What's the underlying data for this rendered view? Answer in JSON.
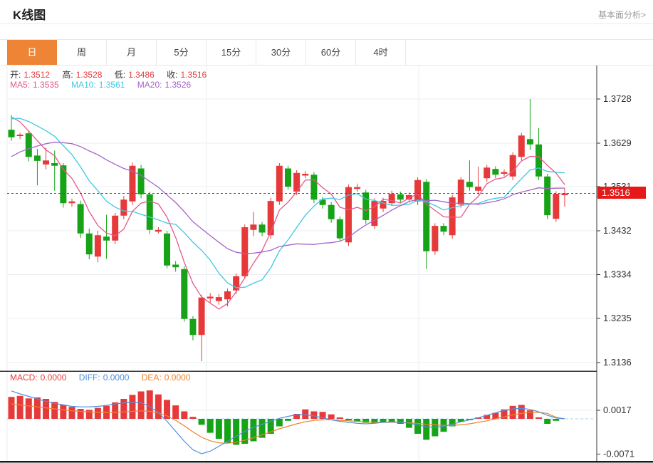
{
  "header": {
    "title": "K线图",
    "link": "基本面分析>"
  },
  "tabs": [
    {
      "label": "日",
      "active": true
    },
    {
      "label": "周",
      "active": false
    },
    {
      "label": "月",
      "active": false
    },
    {
      "label": "5分",
      "active": false
    },
    {
      "label": "15分",
      "active": false
    },
    {
      "label": "30分",
      "active": false
    },
    {
      "label": "60分",
      "active": false
    },
    {
      "label": "4时",
      "active": false
    }
  ],
  "legend": {
    "ohlc": [
      {
        "label": "开:",
        "value": "1.3512"
      },
      {
        "label": "高:",
        "value": "1.3528"
      },
      {
        "label": "低:",
        "value": "1.3486"
      },
      {
        "label": "收:",
        "value": "1.3516"
      }
    ],
    "ma": [
      {
        "label": "MA5:",
        "value": "1.3535"
      },
      {
        "label": "MA10:",
        "value": "1.3561"
      },
      {
        "label": "MA20:",
        "value": "1.3526"
      }
    ],
    "macd": [
      {
        "label": "MACD:",
        "value": "0.0000"
      },
      {
        "label": "DIFF:",
        "value": "0.0000"
      },
      {
        "label": "DEA:",
        "value": "0.0000"
      }
    ]
  },
  "price_axis": {
    "current": "1.3516"
  },
  "colors": {
    "up": "#e63a3a",
    "down": "#17a317",
    "tab_active": "#ee8536",
    "price_badge": "#e71818",
    "ma5": "#e5588a",
    "ma10": "#41c8e1",
    "ma20": "#a564c9",
    "diff": "#4f8fdc",
    "dea": "#f0832a",
    "grid": "#e9eef2",
    "frame": "#333333",
    "zero_dash": "#9fd8e0",
    "tick_text": "#333333"
  },
  "chart_data": {
    "type": "candlestick",
    "title": "K线图 (日)",
    "y_ticks": [
      1.3728,
      1.3629,
      1.3531,
      1.3432,
      1.3334,
      1.3235,
      1.3136
    ],
    "ylim": [
      1.3136,
      1.3728
    ],
    "current_price": 1.3516,
    "ohlc_display": {
      "open": 1.3512,
      "high": 1.3528,
      "low": 1.3486,
      "close": 1.3516
    },
    "ma_values": {
      "ma5": 1.3535,
      "ma10": 1.3561,
      "ma20": 1.3526
    },
    "candles": [
      [
        1.3659,
        1.3692,
        1.3634,
        1.3642
      ],
      [
        1.3645,
        1.3652,
        1.3638,
        1.3648
      ],
      [
        1.3651,
        1.3657,
        1.3588,
        1.3598
      ],
      [
        1.3601,
        1.3616,
        1.3534,
        1.3589
      ],
      [
        1.3581,
        1.3619,
        1.357,
        1.359
      ],
      [
        1.3584,
        1.3612,
        1.3522,
        1.3578
      ],
      [
        1.3579,
        1.3584,
        1.3484,
        1.3494
      ],
      [
        1.3494,
        1.3504,
        1.3486,
        1.3498
      ],
      [
        1.3492,
        1.35,
        1.3416,
        1.3426
      ],
      [
        1.3426,
        1.3437,
        1.3368,
        1.3379
      ],
      [
        1.3374,
        1.3432,
        1.3361,
        1.3422
      ],
      [
        1.3419,
        1.3468,
        1.3369,
        1.341
      ],
      [
        1.341,
        1.3472,
        1.3402,
        1.3466
      ],
      [
        1.3466,
        1.351,
        1.3458,
        1.3502
      ],
      [
        1.3498,
        1.3585,
        1.349,
        1.3578
      ],
      [
        1.3572,
        1.358,
        1.3505,
        1.3514
      ],
      [
        1.3514,
        1.352,
        1.3425,
        1.3434
      ],
      [
        1.343,
        1.344,
        1.3426,
        1.3434
      ],
      [
        1.3426,
        1.3432,
        1.3348,
        1.3354
      ],
      [
        1.3356,
        1.3364,
        1.334,
        1.335
      ],
      [
        1.3346,
        1.3352,
        1.3228,
        1.3234
      ],
      [
        1.3234,
        1.324,
        1.3186,
        1.3198
      ],
      [
        1.3198,
        1.3288,
        1.3139,
        1.3282
      ],
      [
        1.328,
        1.3292,
        1.327,
        1.3284
      ],
      [
        1.3274,
        1.329,
        1.3266,
        1.3283
      ],
      [
        1.3278,
        1.3302,
        1.3262,
        1.3296
      ],
      [
        1.3298,
        1.3336,
        1.329,
        1.333
      ],
      [
        1.333,
        1.3446,
        1.3324,
        1.344
      ],
      [
        1.3434,
        1.3474,
        1.342,
        1.3446
      ],
      [
        1.3446,
        1.3452,
        1.342,
        1.3428
      ],
      [
        1.3422,
        1.3506,
        1.3414,
        1.3499
      ],
      [
        1.3498,
        1.3584,
        1.349,
        1.3578
      ],
      [
        1.3572,
        1.3578,
        1.3524,
        1.3531
      ],
      [
        1.352,
        1.3568,
        1.3512,
        1.3562
      ],
      [
        1.3556,
        1.3566,
        1.355,
        1.356
      ],
      [
        1.3558,
        1.3564,
        1.3494,
        1.3502
      ],
      [
        1.3502,
        1.3508,
        1.3482,
        1.349
      ],
      [
        1.349,
        1.3496,
        1.345,
        1.3458
      ],
      [
        1.3458,
        1.3464,
        1.3408,
        1.3415
      ],
      [
        1.3406,
        1.3536,
        1.3398,
        1.353
      ],
      [
        1.3526,
        1.3538,
        1.352,
        1.353
      ],
      [
        1.3518,
        1.3524,
        1.3448,
        1.3456
      ],
      [
        1.3443,
        1.3505,
        1.3436,
        1.3499
      ],
      [
        1.3482,
        1.3506,
        1.3474,
        1.3499
      ],
      [
        1.3494,
        1.3522,
        1.3488,
        1.3515
      ],
      [
        1.3514,
        1.352,
        1.3495,
        1.3502
      ],
      [
        1.3502,
        1.3518,
        1.3496,
        1.3512
      ],
      [
        1.3498,
        1.3552,
        1.349,
        1.3546
      ],
      [
        1.3542,
        1.3548,
        1.3346,
        1.3386
      ],
      [
        1.3386,
        1.3449,
        1.3378,
        1.3443
      ],
      [
        1.3443,
        1.3449,
        1.3422,
        1.343
      ],
      [
        1.3422,
        1.3513,
        1.3414,
        1.3507
      ],
      [
        1.3491,
        1.3553,
        1.3484,
        1.3547
      ],
      [
        1.3542,
        1.359,
        1.3522,
        1.353
      ],
      [
        1.3522,
        1.3576,
        1.3514,
        1.3531
      ],
      [
        1.355,
        1.358,
        1.3542,
        1.3574
      ],
      [
        1.3571,
        1.3577,
        1.355,
        1.3558
      ],
      [
        1.356,
        1.357,
        1.3554,
        1.3564
      ],
      [
        1.3554,
        1.3608,
        1.3546,
        1.3602
      ],
      [
        1.3598,
        1.3652,
        1.359,
        1.3646
      ],
      [
        1.3638,
        1.3728,
        1.3614,
        1.3626
      ],
      [
        1.3626,
        1.3663,
        1.3546,
        1.3554
      ],
      [
        1.3554,
        1.356,
        1.3458,
        1.3467
      ],
      [
        1.3459,
        1.3521,
        1.3452,
        1.3515
      ],
      [
        1.3512,
        1.3528,
        1.3486,
        1.3516
      ]
    ],
    "ma_windows": [
      5,
      10,
      20
    ],
    "ma_seed_closes": [
      1.344,
      1.3452,
      1.3468,
      1.3488,
      1.3505,
      1.3522,
      1.354,
      1.3558,
      1.3575,
      1.359,
      1.364,
      1.3668,
      1.3688,
      1.3698,
      1.3702,
      1.3705,
      1.37,
      1.3698,
      1.3695
    ],
    "macd": {
      "ticks": [
        0.0017,
        -0.0071
      ],
      "unit": 0.0001,
      "hist": [
        44,
        46,
        41,
        43,
        40,
        34,
        28,
        24,
        20,
        18,
        22,
        26,
        33,
        40,
        48,
        55,
        57,
        49,
        38,
        27,
        15,
        4,
        -12,
        -28,
        -40,
        -48,
        -52,
        -50,
        -45,
        -38,
        -30,
        -15,
        -4,
        10,
        19,
        15,
        14,
        9,
        2,
        -3,
        -6,
        -8,
        -9,
        -8,
        -6,
        -10,
        -18,
        -30,
        -42,
        -35,
        -26,
        -15,
        -6,
        -2,
        2,
        8,
        12,
        19,
        26,
        28,
        17,
        3,
        -10,
        -4,
        0
      ],
      "diff": [
        56,
        50,
        45,
        40,
        35,
        31,
        28,
        25,
        24,
        24,
        25,
        27,
        30,
        32,
        33,
        32,
        25,
        12,
        -5,
        -25,
        -45,
        -62,
        -70,
        -65,
        -55,
        -45,
        -35,
        -25,
        -17,
        -11,
        -5,
        1,
        5,
        8,
        8,
        6,
        2,
        -2,
        -5,
        -7,
        -9,
        -10,
        -9,
        -7,
        -6,
        -7,
        -9,
        -12,
        -16,
        -17,
        -15,
        -11,
        -6,
        -2,
        2,
        7,
        12,
        17,
        20,
        21,
        19,
        14,
        7,
        2,
        0
      ],
      "dea": [
        30,
        28,
        26,
        24,
        22,
        20,
        18,
        16,
        15,
        14,
        13,
        13,
        13,
        14,
        15,
        16,
        15,
        12,
        6,
        -3,
        -14,
        -26,
        -37,
        -44,
        -48,
        -49,
        -47,
        -43,
        -38,
        -32,
        -26,
        -20,
        -15,
        -10,
        -6,
        -3,
        -2,
        -2,
        -3,
        -4,
        -5,
        -6,
        -7,
        -7,
        -7,
        -7,
        -8,
        -9,
        -11,
        -12,
        -13,
        -13,
        -12,
        -10,
        -7,
        -4,
        0,
        4,
        8,
        11,
        13,
        13,
        11,
        3,
        0
      ]
    }
  }
}
